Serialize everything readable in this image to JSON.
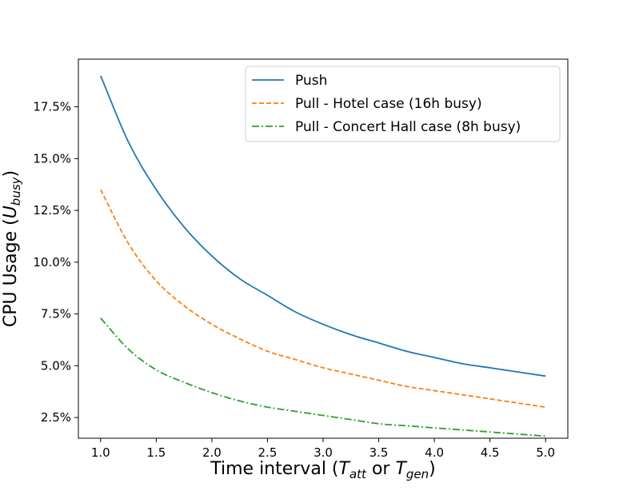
{
  "chart_data": {
    "type": "line",
    "title": "",
    "xlabel": {
      "prefix": "Time interval (",
      "t1_main": "T",
      "t1_sub": "att",
      "middle": " or ",
      "t2_main": "T",
      "t2_sub": "gen",
      "suffix": ")"
    },
    "ylabel": {
      "prefix": "CPU Usage (",
      "main": "U",
      "sub": "busy",
      "suffix": ")"
    },
    "xlim": [
      0.8,
      5.2
    ],
    "ylim": [
      1.5,
      19.8
    ],
    "x_ticks": [
      1.0,
      1.5,
      2.0,
      2.5,
      3.0,
      3.5,
      4.0,
      4.5,
      5.0
    ],
    "x_tick_labels": [
      "1.0",
      "1.5",
      "2.0",
      "2.5",
      "3.0",
      "3.5",
      "4.0",
      "4.5",
      "5.0"
    ],
    "y_ticks": [
      2.5,
      5.0,
      7.5,
      10.0,
      12.5,
      15.0,
      17.5
    ],
    "y_tick_labels": [
      "2.5%",
      "5.0%",
      "7.5%",
      "10.0%",
      "12.5%",
      "15.0%",
      "17.5%"
    ],
    "legend_position": "top-right",
    "grid": false,
    "x": [
      1.0,
      1.25,
      1.5,
      1.75,
      2.0,
      2.25,
      2.5,
      2.75,
      3.0,
      3.25,
      3.5,
      3.75,
      4.0,
      4.25,
      4.5,
      4.75,
      5.0
    ],
    "series": [
      {
        "name": "Push",
        "color": "#1f77b4",
        "dash": "solid",
        "values": [
          19.0,
          15.8,
          13.5,
          11.7,
          10.3,
          9.2,
          8.4,
          7.6,
          7.0,
          6.5,
          6.1,
          5.7,
          5.4,
          5.1,
          4.9,
          4.7,
          4.5
        ]
      },
      {
        "name": "Pull - Hotel case (16h busy)",
        "color": "#ff7f0e",
        "dash": "dashed",
        "values": [
          13.5,
          10.9,
          9.1,
          7.9,
          7.0,
          6.3,
          5.7,
          5.3,
          4.9,
          4.6,
          4.3,
          4.0,
          3.8,
          3.6,
          3.4,
          3.2,
          3.0
        ]
      },
      {
        "name": "Pull - Concert Hall case (8h busy)",
        "color": "#2ca02c",
        "dash": "dashdot",
        "values": [
          7.3,
          5.8,
          4.8,
          4.2,
          3.7,
          3.3,
          3.0,
          2.8,
          2.6,
          2.4,
          2.2,
          2.1,
          2.0,
          1.9,
          1.8,
          1.7,
          1.6
        ]
      }
    ]
  }
}
